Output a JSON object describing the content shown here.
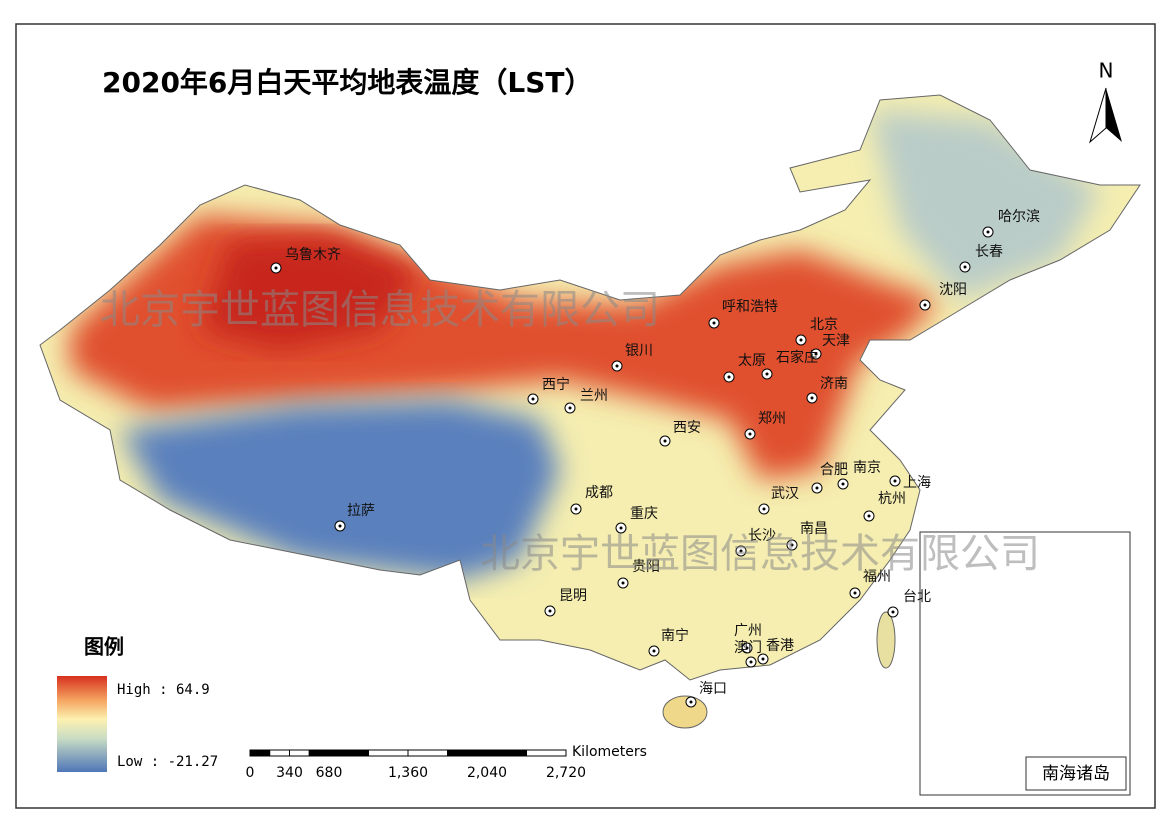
{
  "title": "2020年6月白天平均地表温度（LST）",
  "north": "N",
  "cities": [
    "乌鲁木齐",
    "呼和浩特",
    "北京",
    "天津",
    "银川",
    "石家庄",
    "太原",
    "沈阳",
    "长春",
    "哈尔滨",
    "西宁",
    "兰州",
    "济南",
    "郑州",
    "西安",
    "合肥",
    "南京",
    "上海",
    "杭州",
    "武汉",
    "成都",
    "重庆",
    "拉萨",
    "长沙",
    "南昌",
    "贵阳",
    "福州",
    "台北",
    "昆明",
    "南宁",
    "广州",
    "澳门",
    "香港",
    "海口"
  ],
  "legend": {
    "title": "图例",
    "high": "High : 64.9",
    "low": "Low : -21.27"
  },
  "scale_bar": {
    "unit": "Kilometers",
    "ticks": [
      0,
      340,
      680,
      {
        "value": 1360,
        "label": "1,360"
      },
      {
        "value": 2040,
        "label": "2,040"
      },
      {
        "value": 2720,
        "label": "2,720"
      }
    ]
  },
  "inset": {
    "label": "南海诸岛"
  },
  "watermark": [
    "北京宇世蓝图信息技术有限公司",
    "北京宇世蓝图信息技术有限公司"
  ]
}
